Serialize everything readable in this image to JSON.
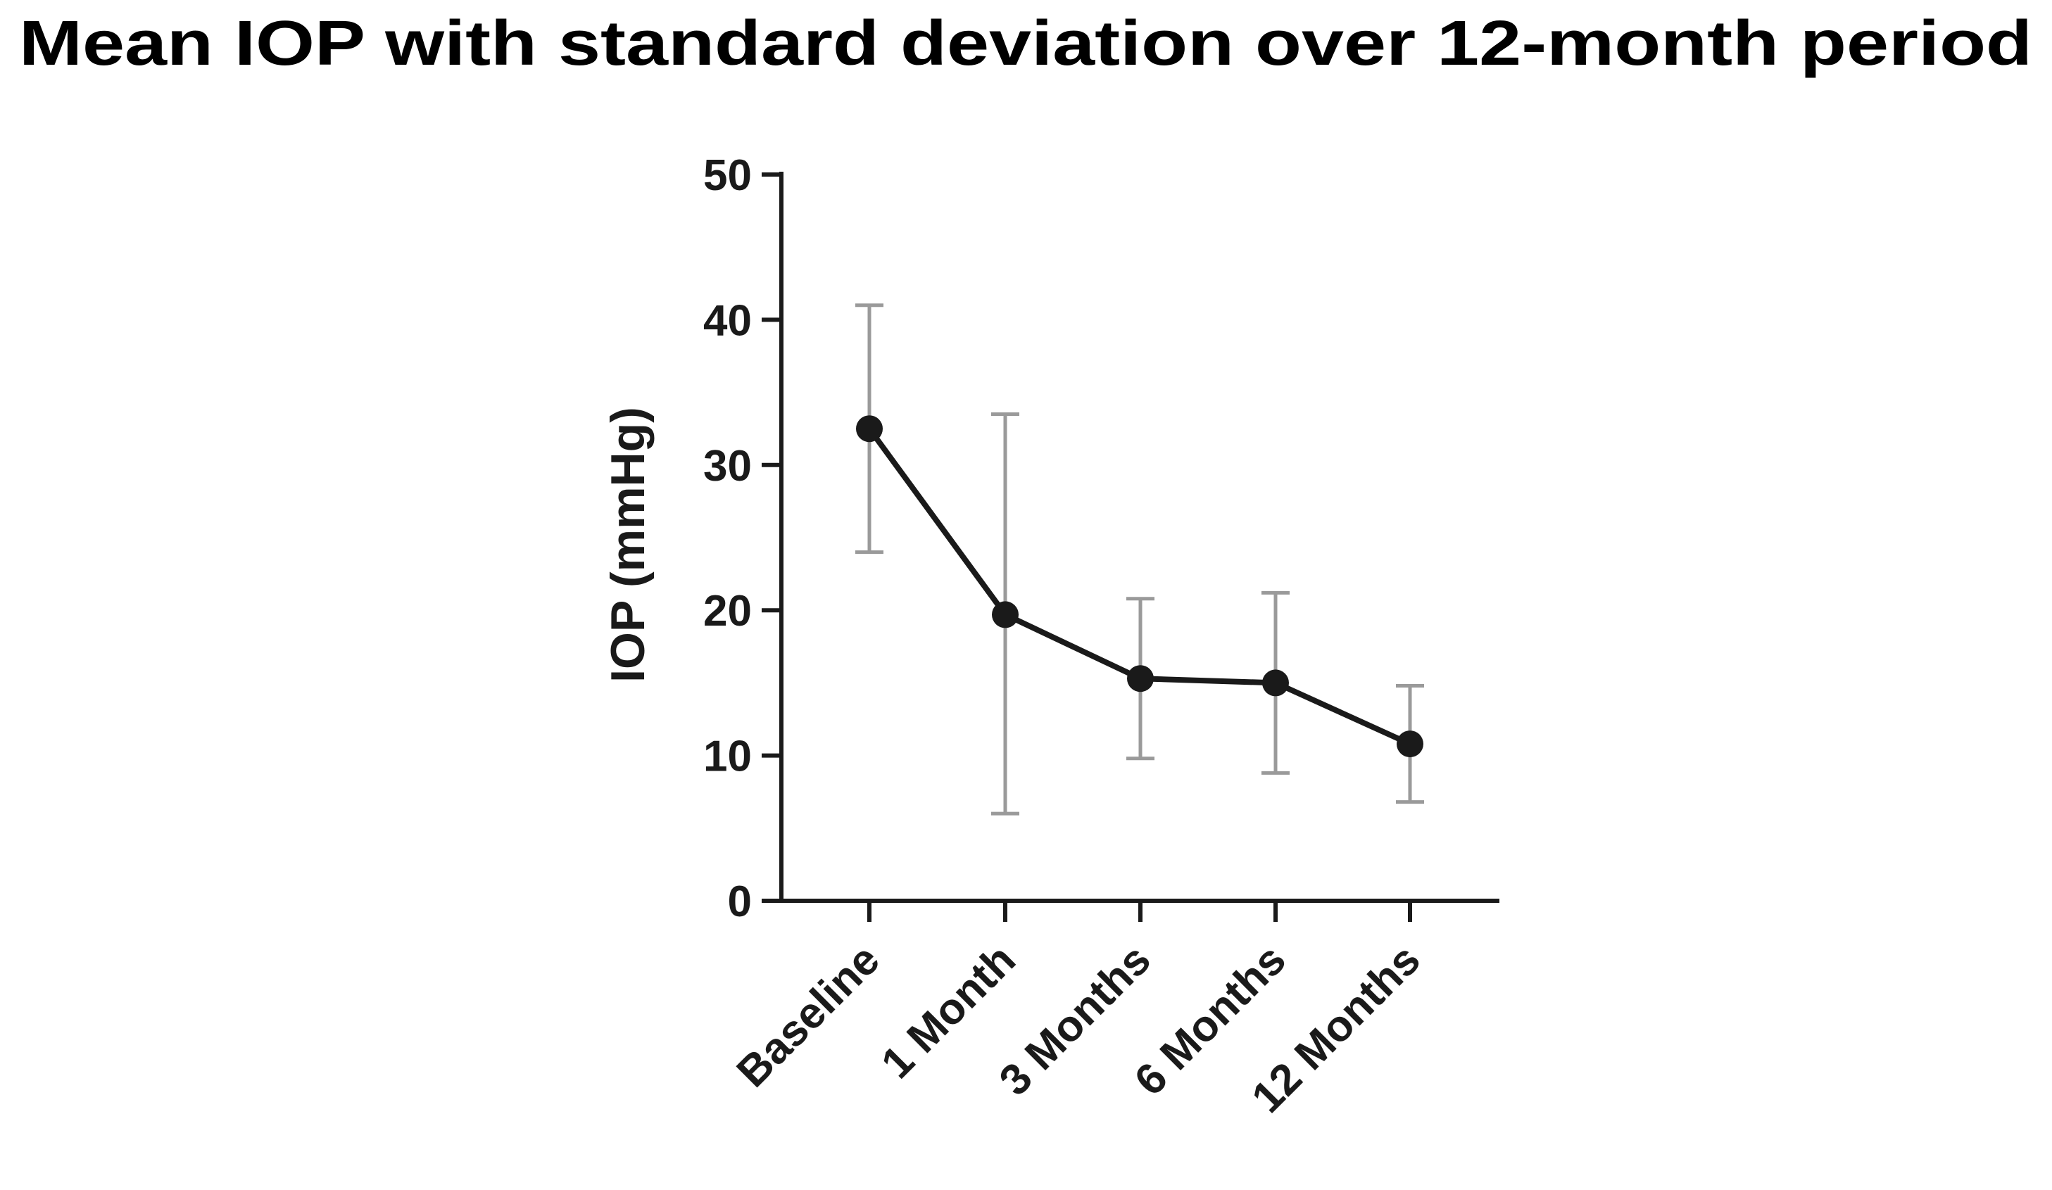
{
  "chart_data": {
    "type": "line",
    "title": "Mean IOP with standard deviation over 12-month period",
    "xlabel": "",
    "ylabel": "IOP (mmHg)",
    "ylim": [
      0,
      50
    ],
    "yticks": [
      0,
      10,
      20,
      30,
      40,
      50
    ],
    "categories": [
      "Baseline",
      "1 Month",
      "3 Months",
      "6 Months",
      "12 Months"
    ],
    "series": [
      {
        "values": [
          32.5,
          19.7,
          15.3,
          15.0,
          10.8
        ],
        "error_low": [
          24.0,
          6.0,
          9.8,
          8.8,
          6.8
        ],
        "error_high": [
          41.0,
          33.5,
          20.8,
          21.2,
          14.8
        ]
      }
    ],
    "grid": false,
    "legend": "none",
    "line_color": "#1a1a1a",
    "errorbar_color": "#9a9a9a"
  }
}
